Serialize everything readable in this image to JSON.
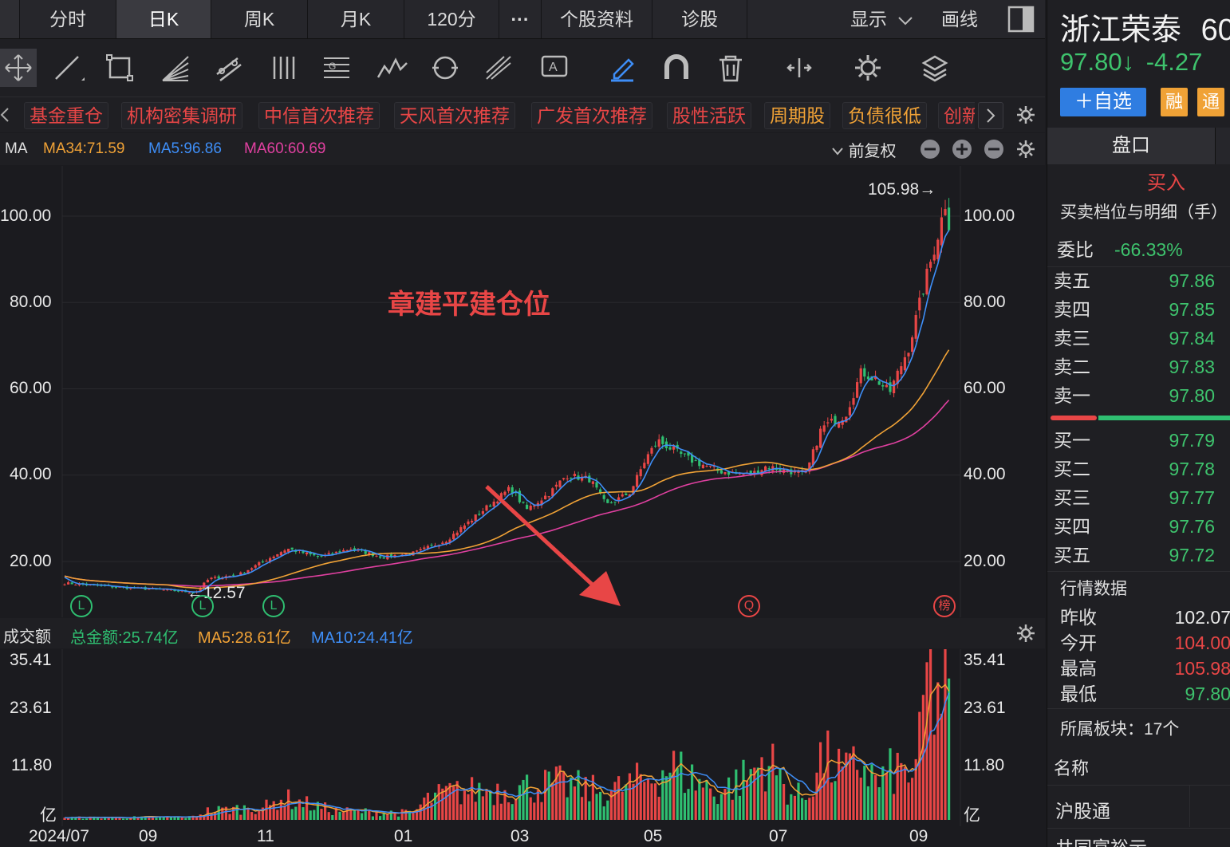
{
  "tabs": {
    "intraday": "分时",
    "daily": "日K",
    "weekly": "周K",
    "monthly": "月K",
    "m120": "120分",
    "more": "···",
    "profile": "个股资料",
    "diagnose": "诊股",
    "display": "显示",
    "draw": "画线"
  },
  "concept_tags": [
    "基金重仓",
    "机构密集调研",
    "中信首次推荐",
    "天风首次推荐",
    "广发首次推荐",
    "股性活跃",
    "周期股",
    "负债很低",
    "创新"
  ],
  "ma_legend": {
    "label": "MA",
    "ma34": "MA34:71.59",
    "ma5": "MA5:96.86",
    "ma60": "MA60:60.69",
    "adjust": "前复权"
  },
  "colors": {
    "ma34": "#f0a236",
    "ma5": "#3e8ef7",
    "ma60": "#e040a0",
    "up": "#e84646",
    "down": "#2fbf71",
    "bg": "#1b1b1f"
  },
  "price_axis": {
    "ticks": [
      "100.00",
      "80.00",
      "60.00",
      "40.00",
      "20.00"
    ]
  },
  "annotations": {
    "high": "105.98→",
    "low": "←12.57",
    "note": "章建平建仓位",
    "markers": [
      "L",
      "L",
      "L",
      "Q",
      "榜"
    ]
  },
  "volume_legend": {
    "label": "成交额",
    "total": "总金额:25.74亿",
    "ma5": "MA5:28.61亿",
    "ma10": "MA10:24.41亿"
  },
  "volume_axis": {
    "ticks": [
      "35.41",
      "23.61",
      "11.80",
      "亿"
    ]
  },
  "date_axis": [
    "2024/07",
    "09",
    "11",
    "01",
    "03",
    "05",
    "07",
    "09"
  ],
  "stock": {
    "name": "浙江荣泰",
    "code_partial": "60",
    "price": "97.80↓",
    "change": "-4.27",
    "watch_btn": "＋自选",
    "badge1": "融",
    "badge2": "通"
  },
  "panel": {
    "tab": "盘口",
    "buy_label": "买入",
    "detail_title": "买卖档位与明细（手）",
    "ratio_label": "委比",
    "ratio_value": "-66.33%",
    "asks": [
      {
        "k": "卖五",
        "v": "97.86"
      },
      {
        "k": "卖四",
        "v": "97.85"
      },
      {
        "k": "卖三",
        "v": "97.84"
      },
      {
        "k": "卖二",
        "v": "97.83"
      },
      {
        "k": "卖一",
        "v": "97.80"
      }
    ],
    "bids": [
      {
        "k": "买一",
        "v": "97.79"
      },
      {
        "k": "买二",
        "v": "97.78"
      },
      {
        "k": "买三",
        "v": "97.77"
      },
      {
        "k": "买四",
        "v": "97.76"
      },
      {
        "k": "买五",
        "v": "97.72"
      }
    ],
    "market_title": "行情数据",
    "market": [
      {
        "k": "昨收",
        "v": "102.07"
      },
      {
        "k": "今开",
        "v": "104.00"
      },
      {
        "k": "最高",
        "v": "105.98"
      },
      {
        "k": "最低",
        "v": "97.80"
      }
    ],
    "sector": "所属板块：17个",
    "name_label": "名称",
    "hsgt": "沪股通",
    "bottom_partial": "共同富裕示"
  }
}
